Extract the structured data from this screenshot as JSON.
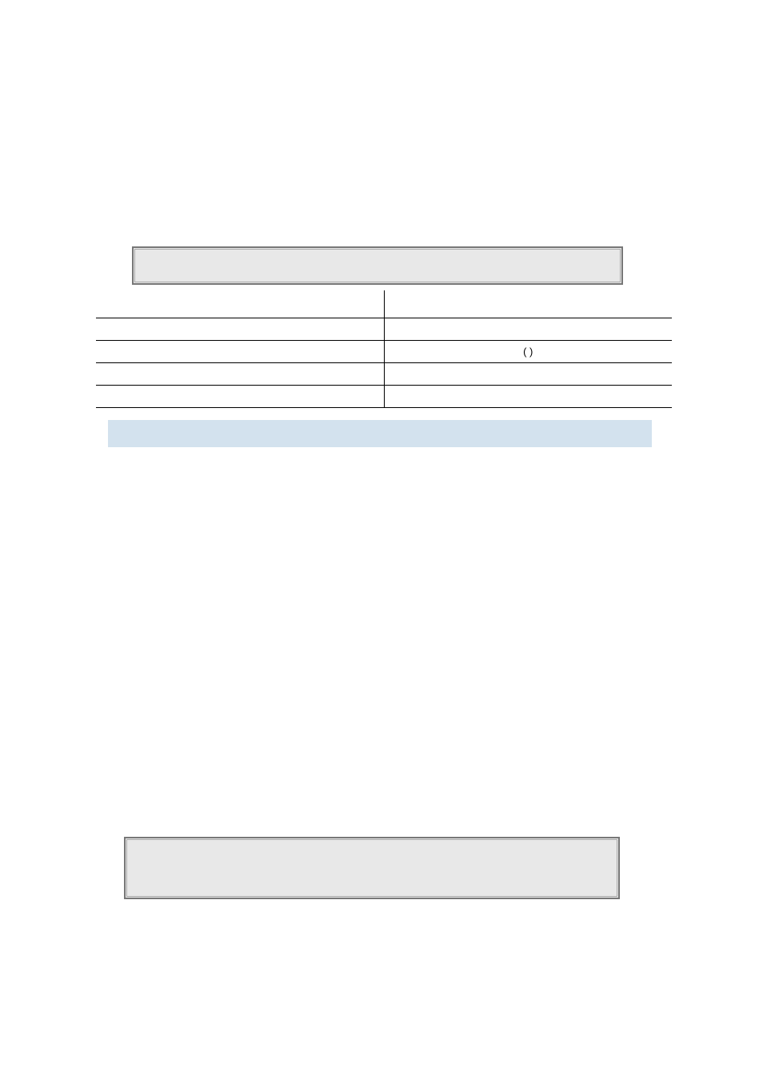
{
  "boxes": {
    "box1_bg": "#e8e8e8",
    "box2_bg": "#e8e8e8",
    "border_color": "#777777"
  },
  "table": {
    "rows": [
      [
        "",
        ""
      ],
      [
        "",
        ""
      ],
      [
        "",
        "(          )"
      ],
      [
        "",
        ""
      ],
      [
        "",
        ""
      ]
    ]
  },
  "blue_bar": {
    "bg": "#d3e2ee"
  }
}
